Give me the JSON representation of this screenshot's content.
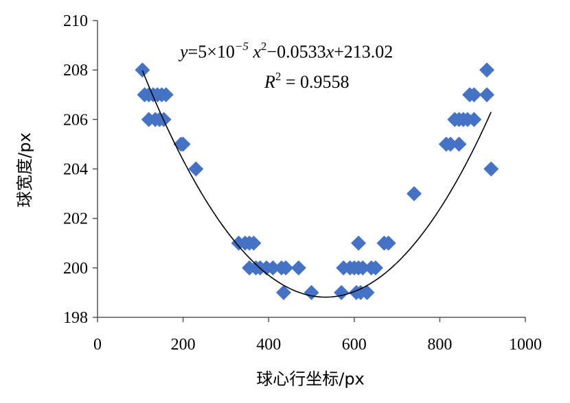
{
  "chart_data": {
    "type": "scatter",
    "xlabel": "球心行坐标/px",
    "ylabel": "球宽度/px",
    "xlim": [
      0,
      1000
    ],
    "ylim": [
      198,
      210
    ],
    "x_ticks": [
      0,
      200,
      400,
      600,
      800,
      1000
    ],
    "y_ticks": [
      198,
      200,
      202,
      204,
      206,
      208,
      210
    ],
    "x_tick_labels": [
      "0",
      "200",
      "400",
      "600",
      "800",
      "1000"
    ],
    "y_tick_labels": [
      "198",
      "200",
      "202",
      "204",
      "206",
      "208",
      "210"
    ],
    "marker_color": "#4472C4",
    "trendline_color": "#000000",
    "grid": false,
    "trendline": {
      "type": "polynomial",
      "coefficients": [
        5e-05,
        -0.0533,
        213.02
      ],
      "equation": {
        "y": "y",
        "eq1": "=5×10",
        "exp1": "−5",
        "x": " x",
        "exp2": "2",
        "eq2": "−0.0533",
        "x2": "x",
        "eq3": "+213.02"
      },
      "r2": {
        "r": "R",
        "sup": "2",
        "value": " = 0.9558"
      }
    },
    "points": [
      {
        "x": 105,
        "y": 208
      },
      {
        "x": 110,
        "y": 207
      },
      {
        "x": 120,
        "y": 207
      },
      {
        "x": 130,
        "y": 207
      },
      {
        "x": 140,
        "y": 207
      },
      {
        "x": 150,
        "y": 207
      },
      {
        "x": 160,
        "y": 207
      },
      {
        "x": 120,
        "y": 206
      },
      {
        "x": 135,
        "y": 206
      },
      {
        "x": 145,
        "y": 206
      },
      {
        "x": 155,
        "y": 206
      },
      {
        "x": 195,
        "y": 205
      },
      {
        "x": 200,
        "y": 205
      },
      {
        "x": 230,
        "y": 204
      },
      {
        "x": 330,
        "y": 201
      },
      {
        "x": 345,
        "y": 201
      },
      {
        "x": 355,
        "y": 201
      },
      {
        "x": 365,
        "y": 201
      },
      {
        "x": 355,
        "y": 200
      },
      {
        "x": 370,
        "y": 200
      },
      {
        "x": 380,
        "y": 200
      },
      {
        "x": 395,
        "y": 200
      },
      {
        "x": 410,
        "y": 200
      },
      {
        "x": 430,
        "y": 200
      },
      {
        "x": 440,
        "y": 200
      },
      {
        "x": 470,
        "y": 200
      },
      {
        "x": 435,
        "y": 199
      },
      {
        "x": 500,
        "y": 199
      },
      {
        "x": 570,
        "y": 199
      },
      {
        "x": 605,
        "y": 199
      },
      {
        "x": 615,
        "y": 199
      },
      {
        "x": 630,
        "y": 199
      },
      {
        "x": 575,
        "y": 200
      },
      {
        "x": 590,
        "y": 200
      },
      {
        "x": 600,
        "y": 200
      },
      {
        "x": 610,
        "y": 200
      },
      {
        "x": 620,
        "y": 200
      },
      {
        "x": 640,
        "y": 200
      },
      {
        "x": 650,
        "y": 200
      },
      {
        "x": 610,
        "y": 201
      },
      {
        "x": 670,
        "y": 201
      },
      {
        "x": 680,
        "y": 201
      },
      {
        "x": 740,
        "y": 203
      },
      {
        "x": 815,
        "y": 205
      },
      {
        "x": 825,
        "y": 205
      },
      {
        "x": 845,
        "y": 205
      },
      {
        "x": 835,
        "y": 206
      },
      {
        "x": 845,
        "y": 206
      },
      {
        "x": 855,
        "y": 206
      },
      {
        "x": 865,
        "y": 206
      },
      {
        "x": 880,
        "y": 206
      },
      {
        "x": 870,
        "y": 207
      },
      {
        "x": 880,
        "y": 207
      },
      {
        "x": 910,
        "y": 207
      },
      {
        "x": 910,
        "y": 208
      },
      {
        "x": 920,
        "y": 204
      }
    ]
  }
}
